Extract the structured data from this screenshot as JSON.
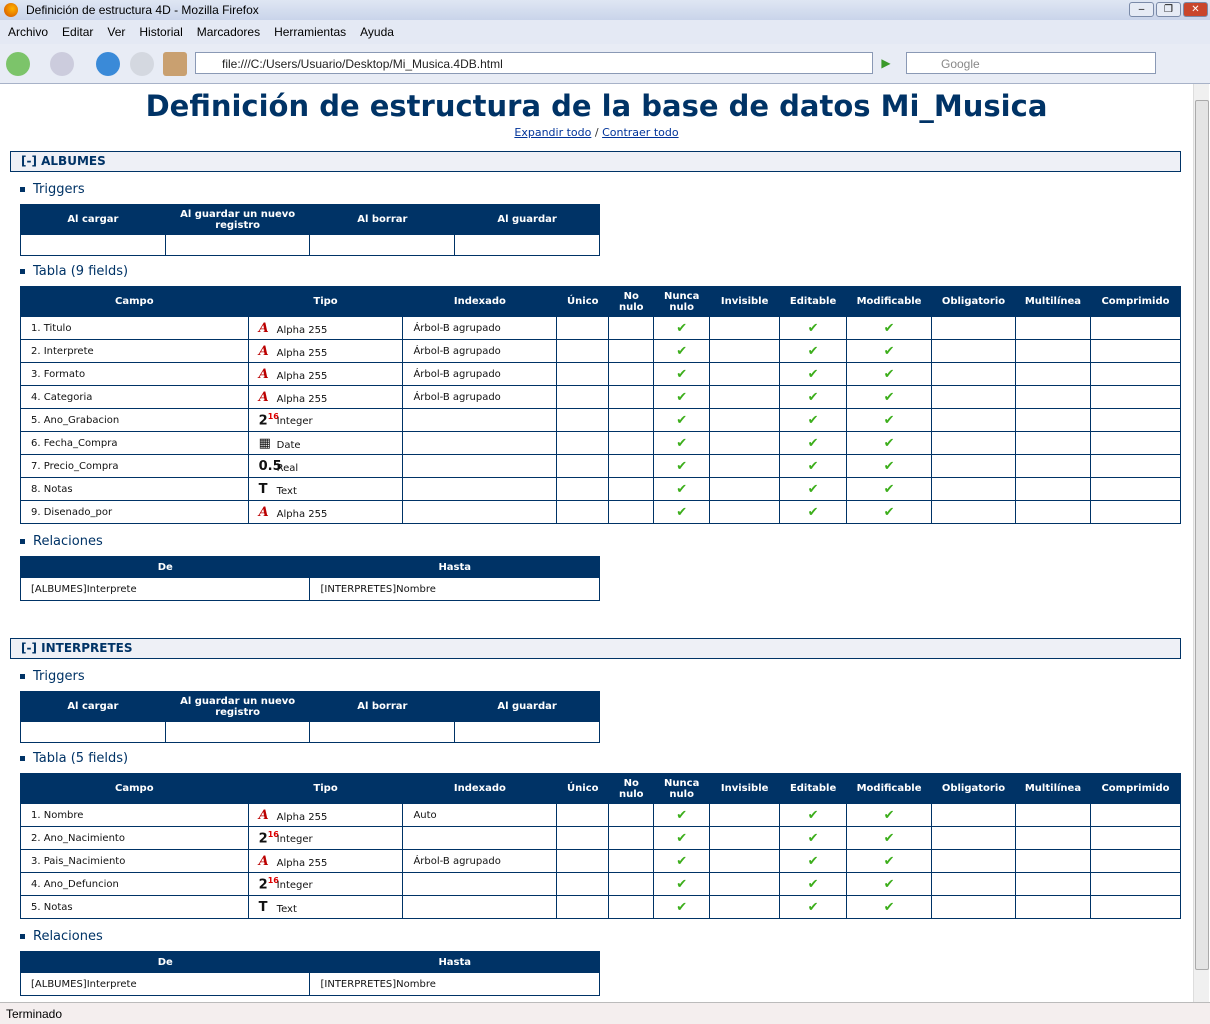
{
  "window": {
    "title": "Definición de estructura 4D - Mozilla Firefox"
  },
  "menu": [
    "Archivo",
    "Editar",
    "Ver",
    "Historial",
    "Marcadores",
    "Herramientas",
    "Ayuda"
  ],
  "url": "file:///C:/Users/Usuario/Desktop/Mi_Musica.4DB.html",
  "search_placeholder": "Google",
  "status": "Terminado",
  "page": {
    "title": "Definición de estructura de la base de datos Mi_Musica",
    "expand": "Expandir todo",
    "sep": "/",
    "collapse": "Contraer todo"
  },
  "labels": {
    "triggers": "Triggers",
    "relations": "Relaciones"
  },
  "trigger_headers": [
    "Al cargar",
    "Al guardar un nuevo registro",
    "Al borrar",
    "Al guardar"
  ],
  "field_headers": [
    "Campo",
    "Tipo",
    "Indexado",
    "Único",
    "No nulo",
    "Nunca nulo",
    "Invisible",
    "Editable",
    "Modificable",
    "Obligatorio",
    "Multilínea",
    "Comprimido"
  ],
  "relation_headers": [
    "De",
    "Hasta"
  ],
  "check_icon": "checkmark-icon",
  "colors": {
    "header": "#003366",
    "check": "#3cae1b"
  },
  "tables": [
    {
      "name": "[-] ALBUMES",
      "table_label": "Tabla (9 fields)",
      "fields": [
        {
          "campo": "1. Titulo",
          "tipo": "Alpha 255",
          "icon": "alpha",
          "indexado": "Árbol-B agrupado"
        },
        {
          "campo": "2. Interprete",
          "tipo": "Alpha 255",
          "icon": "alpha",
          "indexado": "Árbol-B agrupado"
        },
        {
          "campo": "3. Formato",
          "tipo": "Alpha 255",
          "icon": "alpha",
          "indexado": "Árbol-B agrupado"
        },
        {
          "campo": "4. Categoria",
          "tipo": "Alpha 255",
          "icon": "alpha",
          "indexado": "Árbol-B agrupado"
        },
        {
          "campo": "5. Ano_Grabacion",
          "tipo": "Integer",
          "icon": "integer",
          "indexado": ""
        },
        {
          "campo": "6. Fecha_Compra",
          "tipo": "Date",
          "icon": "date",
          "indexado": ""
        },
        {
          "campo": "7. Precio_Compra",
          "tipo": "Real",
          "icon": "real",
          "indexado": ""
        },
        {
          "campo": "8. Notas",
          "tipo": "Text",
          "icon": "text",
          "indexado": ""
        },
        {
          "campo": "9. Disenado_por",
          "tipo": "Alpha 255",
          "icon": "alpha",
          "indexado": ""
        }
      ],
      "relation": {
        "de": "[ALBUMES]Interprete",
        "hasta": "[INTERPRETES]Nombre"
      }
    },
    {
      "name": "[-] INTERPRETES",
      "table_label": "Tabla (5 fields)",
      "fields": [
        {
          "campo": "1. Nombre",
          "tipo": "Alpha 255",
          "icon": "alpha",
          "indexado": "Auto"
        },
        {
          "campo": "2. Ano_Nacimiento",
          "tipo": "Integer",
          "icon": "integer",
          "indexado": ""
        },
        {
          "campo": "3. Pais_Nacimiento",
          "tipo": "Alpha 255",
          "icon": "alpha",
          "indexado": "Árbol-B agrupado"
        },
        {
          "campo": "4. Ano_Defuncion",
          "tipo": "Integer",
          "icon": "integer",
          "indexado": ""
        },
        {
          "campo": "5. Notas",
          "tipo": "Text",
          "icon": "text",
          "indexado": ""
        }
      ],
      "relation": {
        "de": "[ALBUMES]Interprete",
        "hasta": "[INTERPRETES]Nombre"
      }
    }
  ]
}
